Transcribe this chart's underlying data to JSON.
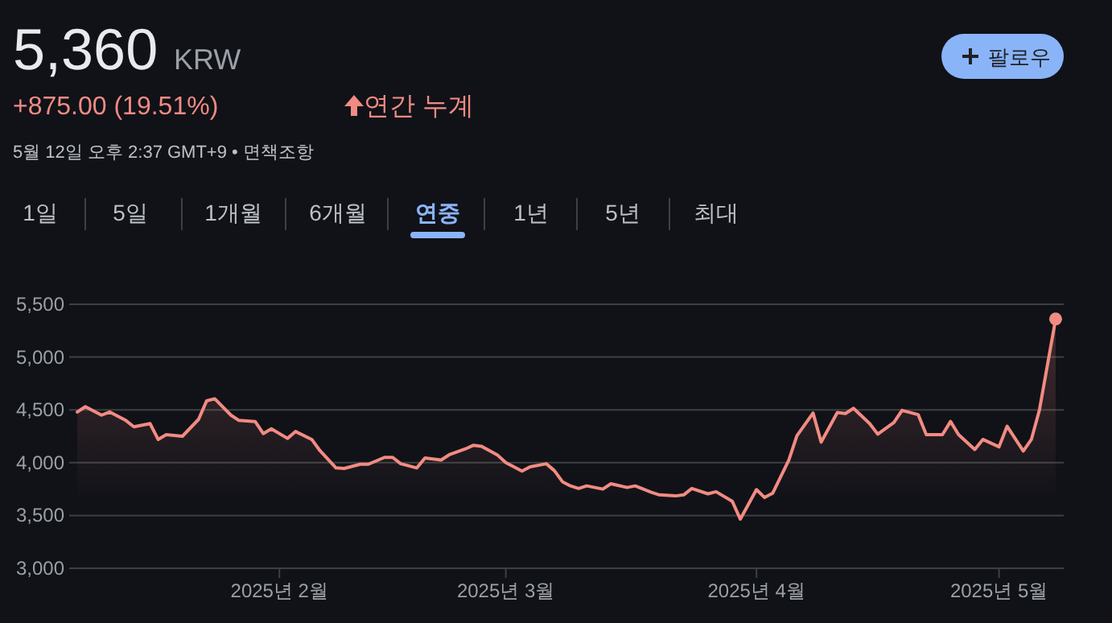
{
  "chart_data": {
    "type": "area",
    "title": "5,360",
    "annotations": [
      "KRW",
      "+875.00 (19.51%)",
      "연간 누계",
      "5월 12일 오후 2:37 GMT+9 • 면책조항",
      "팔로우",
      "1일",
      "5일",
      "1개월",
      "6개월",
      "연중",
      "1년",
      "5년",
      "최대"
    ],
    "x": [
      "2025-01-07",
      "2025-01-08",
      "2025-01-10",
      "2025-01-11",
      "2025-01-13",
      "2025-01-14",
      "2025-01-16",
      "2025-01-17",
      "2025-01-18",
      "2025-01-20",
      "2025-01-22",
      "2025-01-23",
      "2025-01-24",
      "2025-01-26",
      "2025-01-27",
      "2025-01-29",
      "2025-01-30",
      "2025-01-31",
      "2025-02-02",
      "2025-02-03",
      "2025-02-05",
      "2025-02-06",
      "2025-02-08",
      "2025-02-09",
      "2025-02-11",
      "2025-02-12",
      "2025-02-14",
      "2025-02-15",
      "2025-02-16",
      "2025-02-18",
      "2025-02-19",
      "2025-02-21",
      "2025-02-22",
      "2025-02-24",
      "2025-02-25",
      "2025-02-26",
      "2025-02-28",
      "2025-03-01",
      "2025-03-03",
      "2025-03-04",
      "2025-03-06",
      "2025-03-07",
      "2025-03-08",
      "2025-03-09",
      "2025-03-10",
      "2025-03-11",
      "2025-03-13",
      "2025-03-14",
      "2025-03-16",
      "2025-03-17",
      "2025-03-19",
      "2025-03-20",
      "2025-03-22",
      "2025-03-23",
      "2025-03-24",
      "2025-03-26",
      "2025-03-27",
      "2025-03-29",
      "2025-03-30",
      "2025-04-01",
      "2025-04-02",
      "2025-04-03",
      "2025-04-05",
      "2025-04-06",
      "2025-04-08",
      "2025-04-09",
      "2025-04-11",
      "2025-04-12",
      "2025-04-13",
      "2025-04-15",
      "2025-04-16",
      "2025-04-18",
      "2025-04-19",
      "2025-04-21",
      "2025-04-22",
      "2025-04-24",
      "2025-04-25",
      "2025-04-26",
      "2025-04-28",
      "2025-04-29",
      "2025-05-01",
      "2025-05-02",
      "2025-05-04",
      "2025-05-05",
      "2025-05-06",
      "2025-05-08"
    ],
    "series": [
      {
        "color": "#f28b82",
        "values": [
          4480,
          4530,
          4450,
          4480,
          4400,
          4340,
          4370,
          4220,
          4265,
          4250,
          4410,
          4585,
          4605,
          4450,
          4400,
          4390,
          4275,
          4320,
          4230,
          4295,
          4220,
          4115,
          3950,
          3945,
          3985,
          3985,
          4050,
          4050,
          3990,
          3950,
          4045,
          4025,
          4075,
          4130,
          4165,
          4155,
          4070,
          4000,
          3920,
          3960,
          3990,
          3925,
          3820,
          3780,
          3755,
          3780,
          3750,
          3800,
          3765,
          3780,
          3720,
          3695,
          3685,
          3695,
          3755,
          3705,
          3725,
          3635,
          3465,
          3745,
          3670,
          3710,
          4025,
          4255,
          4470,
          4195,
          4475,
          4465,
          4515,
          4370,
          4270,
          4380,
          4495,
          4455,
          4265,
          4265,
          4390,
          4265,
          4125,
          4220,
          4150,
          4345,
          4110,
          4220,
          4500,
          5360
        ]
      }
    ],
    "xlim": [
      "2025-01-06",
      "2025-05-09"
    ],
    "xticks": [
      {
        "value": "2025-02-01",
        "label": "2025년 2월"
      },
      {
        "value": "2025-03-01",
        "label": "2025년 3월"
      },
      {
        "value": "2025-04-01",
        "label": "2025년 4월"
      },
      {
        "value": "2025-05-01",
        "label": "2025년 5월"
      }
    ],
    "ylim": [
      3000,
      5500
    ],
    "yticks": [
      {
        "value": 3000,
        "label": "3,000"
      },
      {
        "value": 3500,
        "label": "3,500"
      },
      {
        "value": 4000,
        "label": "4,000"
      },
      {
        "value": 4500,
        "label": "4,500"
      },
      {
        "value": 5000,
        "label": "5,000"
      },
      {
        "value": 5500,
        "label": "5,500"
      }
    ],
    "grid": "y",
    "line_style": "solid"
  }
}
